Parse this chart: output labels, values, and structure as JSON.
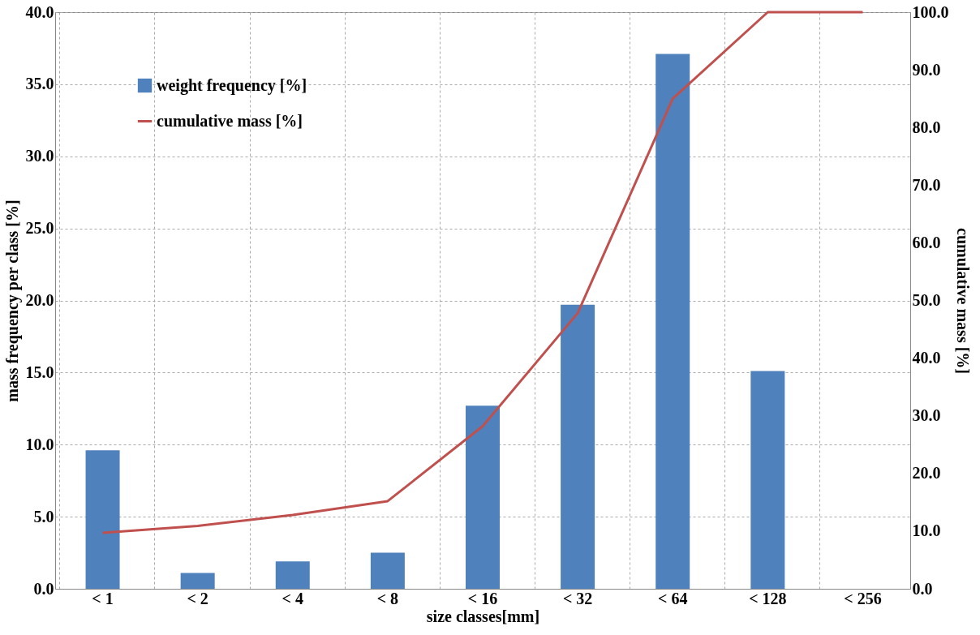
{
  "chart_data": {
    "type": "bar",
    "xlabel": "size classes[mm]",
    "ylabel": "mass frequency per class [%]",
    "y2label": "cumulative mass [%]",
    "categories": [
      "< 1",
      "< 2",
      "< 4",
      "< 8",
      "< 16",
      "< 32",
      "< 64",
      "< 128",
      "< 256"
    ],
    "series": [
      {
        "name": "weight frequency [%]",
        "color": "#4f81bd",
        "values": [
          9.6,
          1.1,
          1.9,
          2.5,
          12.7,
          19.7,
          37.1,
          15.1,
          0
        ]
      },
      {
        "name": "cumulative mass [%]",
        "type": "line",
        "axis": "y2",
        "color": "#c0504d",
        "values": [
          9.7,
          10.9,
          12.8,
          15.2,
          28.2,
          47.8,
          85.0,
          100,
          100
        ]
      }
    ],
    "ylim": [
      0,
      40
    ],
    "yticks": [
      {
        "value": 0,
        "label": "0.0"
      },
      {
        "value": 5,
        "label": "5.0"
      },
      {
        "value": 10,
        "label": "10.0"
      },
      {
        "value": 15,
        "label": "15.0"
      },
      {
        "value": 20,
        "label": "20.0"
      },
      {
        "value": 25,
        "label": "25.0"
      },
      {
        "value": 30,
        "label": "30.0"
      },
      {
        "value": 35,
        "label": "35.0"
      },
      {
        "value": 40,
        "label": "40.0"
      }
    ],
    "y2lim": [
      0,
      100
    ],
    "y2ticks": [
      {
        "value": 0,
        "label": "0.0"
      },
      {
        "value": 10,
        "label": "10.0"
      },
      {
        "value": 20,
        "label": "20.0"
      },
      {
        "value": 30,
        "label": "30.0"
      },
      {
        "value": 40,
        "label": "40.0"
      },
      {
        "value": 50,
        "label": "50.0"
      },
      {
        "value": 60,
        "label": "60.0"
      },
      {
        "value": 70,
        "label": "70.0"
      },
      {
        "value": 80,
        "label": "80.0"
      },
      {
        "value": 90,
        "label": "90.0"
      },
      {
        "value": 100,
        "label": "100.0"
      }
    ],
    "grid": true,
    "legend": "top left"
  }
}
